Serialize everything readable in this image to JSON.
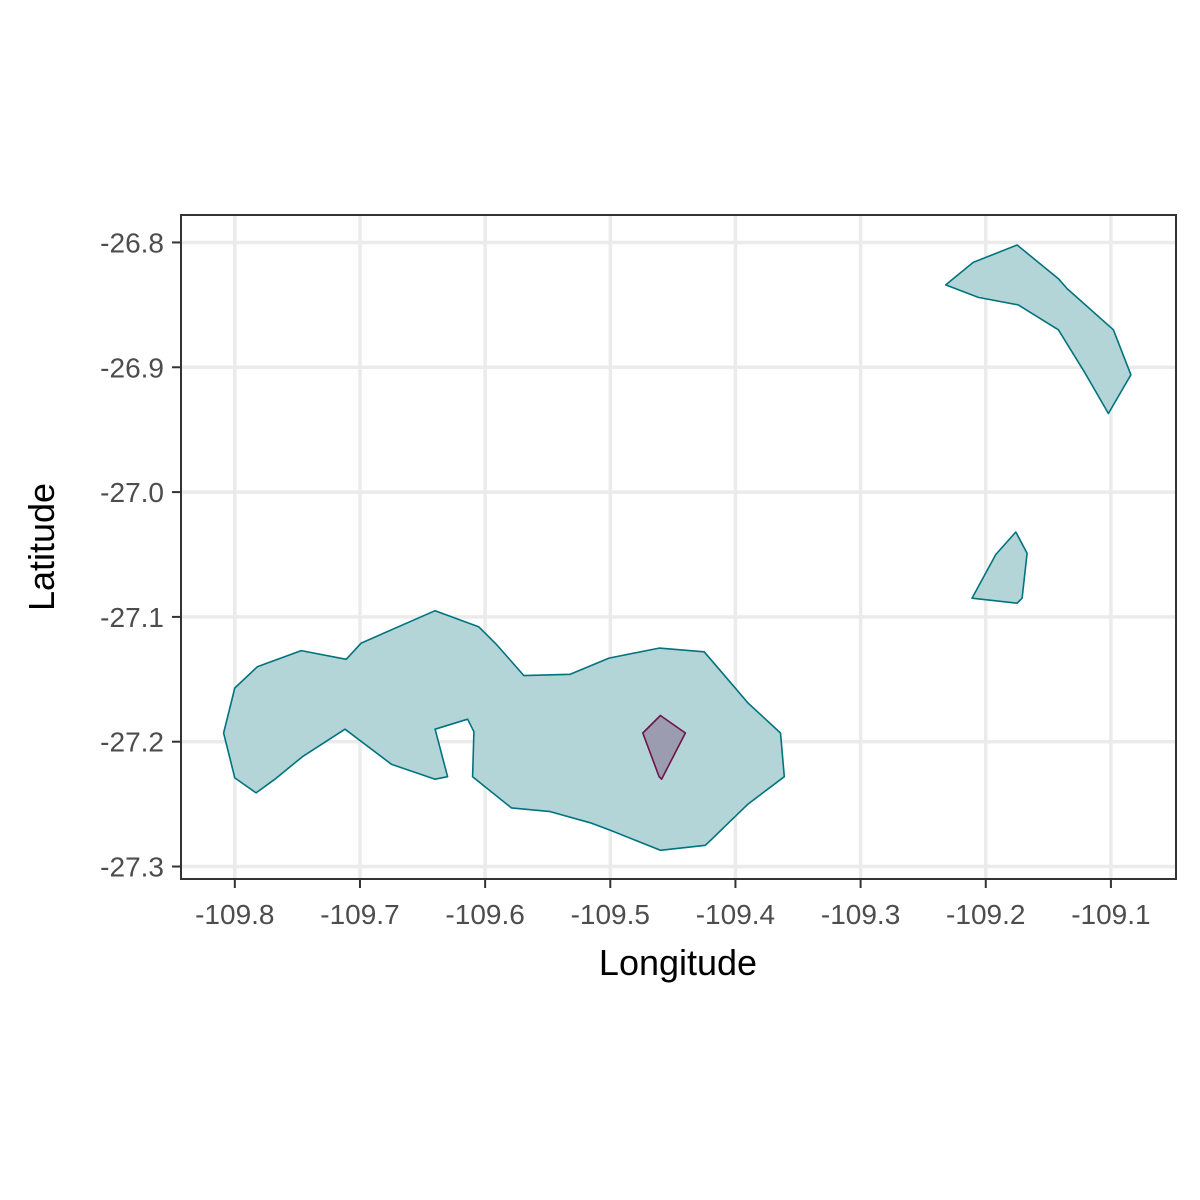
{
  "chart_data": {
    "type": "map",
    "xlabel": "Longitude",
    "ylabel": "Latitude",
    "xlim": [
      -109.843,
      -109.048
    ],
    "ylim": [
      -27.31,
      -26.778
    ],
    "grid": true,
    "x_ticks": [
      {
        "value": -109.8,
        "label": "-109.8"
      },
      {
        "value": -109.7,
        "label": "-109.7"
      },
      {
        "value": -109.6,
        "label": "-109.6"
      },
      {
        "value": -109.5,
        "label": "-109.5"
      },
      {
        "value": -109.4,
        "label": "-109.4"
      },
      {
        "value": -109.3,
        "label": "-109.3"
      },
      {
        "value": -109.2,
        "label": "-109.2"
      },
      {
        "value": -109.1,
        "label": "-109.1"
      }
    ],
    "y_ticks": [
      {
        "value": -26.8,
        "label": "-26.8"
      },
      {
        "value": -26.9,
        "label": "-26.9"
      },
      {
        "value": -27.0,
        "label": "-27.0"
      },
      {
        "value": -27.1,
        "label": "-27.1"
      },
      {
        "value": -27.2,
        "label": "-27.2"
      },
      {
        "value": -27.3,
        "label": "-27.3"
      }
    ],
    "colors": {
      "land_fill": "#b4d5d8",
      "land_stroke": "#00737f",
      "small_fill": "#9b9cb0",
      "small_stroke": "#6e1448",
      "grid": "#ebebeb",
      "panel_border": "#333333"
    },
    "polygons": [
      {
        "style": "land",
        "coords": [
          [
            -109.809,
            -27.193
          ],
          [
            -109.8,
            -27.157
          ],
          [
            -109.782,
            -27.14
          ],
          [
            -109.747,
            -27.127
          ],
          [
            -109.711,
            -27.134
          ],
          [
            -109.699,
            -27.121
          ],
          [
            -109.64,
            -27.095
          ],
          [
            -109.605,
            -27.108
          ],
          [
            -109.591,
            -27.122
          ],
          [
            -109.569,
            -27.147
          ],
          [
            -109.532,
            -27.146
          ],
          [
            -109.501,
            -27.133
          ],
          [
            -109.461,
            -27.125
          ],
          [
            -109.425,
            -27.128
          ],
          [
            -109.401,
            -27.156
          ],
          [
            -109.39,
            -27.169
          ],
          [
            -109.364,
            -27.193
          ],
          [
            -109.361,
            -27.228
          ],
          [
            -109.39,
            -27.25
          ],
          [
            -109.424,
            -27.283
          ],
          [
            -109.46,
            -27.287
          ],
          [
            -109.5,
            -27.271
          ],
          [
            -109.516,
            -27.265
          ],
          [
            -109.548,
            -27.256
          ],
          [
            -109.579,
            -27.253
          ],
          [
            -109.61,
            -27.228
          ],
          [
            -109.609,
            -27.192
          ],
          [
            -109.614,
            -27.182
          ],
          [
            -109.64,
            -27.19
          ],
          [
            -109.63,
            -27.228
          ],
          [
            -109.64,
            -27.23
          ],
          [
            -109.675,
            -27.218
          ],
          [
            -109.712,
            -27.19
          ],
          [
            -109.746,
            -27.212
          ],
          [
            -109.768,
            -27.23
          ],
          [
            -109.783,
            -27.241
          ],
          [
            -109.8,
            -27.229
          ]
        ]
      },
      {
        "style": "land",
        "coords": [
          [
            -109.232,
            -26.834
          ],
          [
            -109.21,
            -26.816
          ],
          [
            -109.175,
            -26.802
          ],
          [
            -109.142,
            -26.829
          ],
          [
            -109.135,
            -26.837
          ],
          [
            -109.098,
            -26.87
          ],
          [
            -109.084,
            -26.906
          ],
          [
            -109.102,
            -26.937
          ],
          [
            -109.121,
            -26.904
          ],
          [
            -109.142,
            -26.87
          ],
          [
            -109.174,
            -26.85
          ],
          [
            -109.206,
            -26.844
          ]
        ]
      },
      {
        "style": "land",
        "coords": [
          [
            -109.211,
            -27.085
          ],
          [
            -109.192,
            -27.05
          ],
          [
            -109.176,
            -27.032
          ],
          [
            -109.167,
            -27.049
          ],
          [
            -109.171,
            -27.085
          ],
          [
            -109.175,
            -27.089
          ]
        ]
      },
      {
        "style": "small",
        "coords": [
          [
            -109.474,
            -27.193
          ],
          [
            -109.46,
            -27.179
          ],
          [
            -109.44,
            -27.193
          ],
          [
            -109.459,
            -27.23
          ],
          [
            -109.461,
            -27.228
          ]
        ]
      }
    ]
  }
}
